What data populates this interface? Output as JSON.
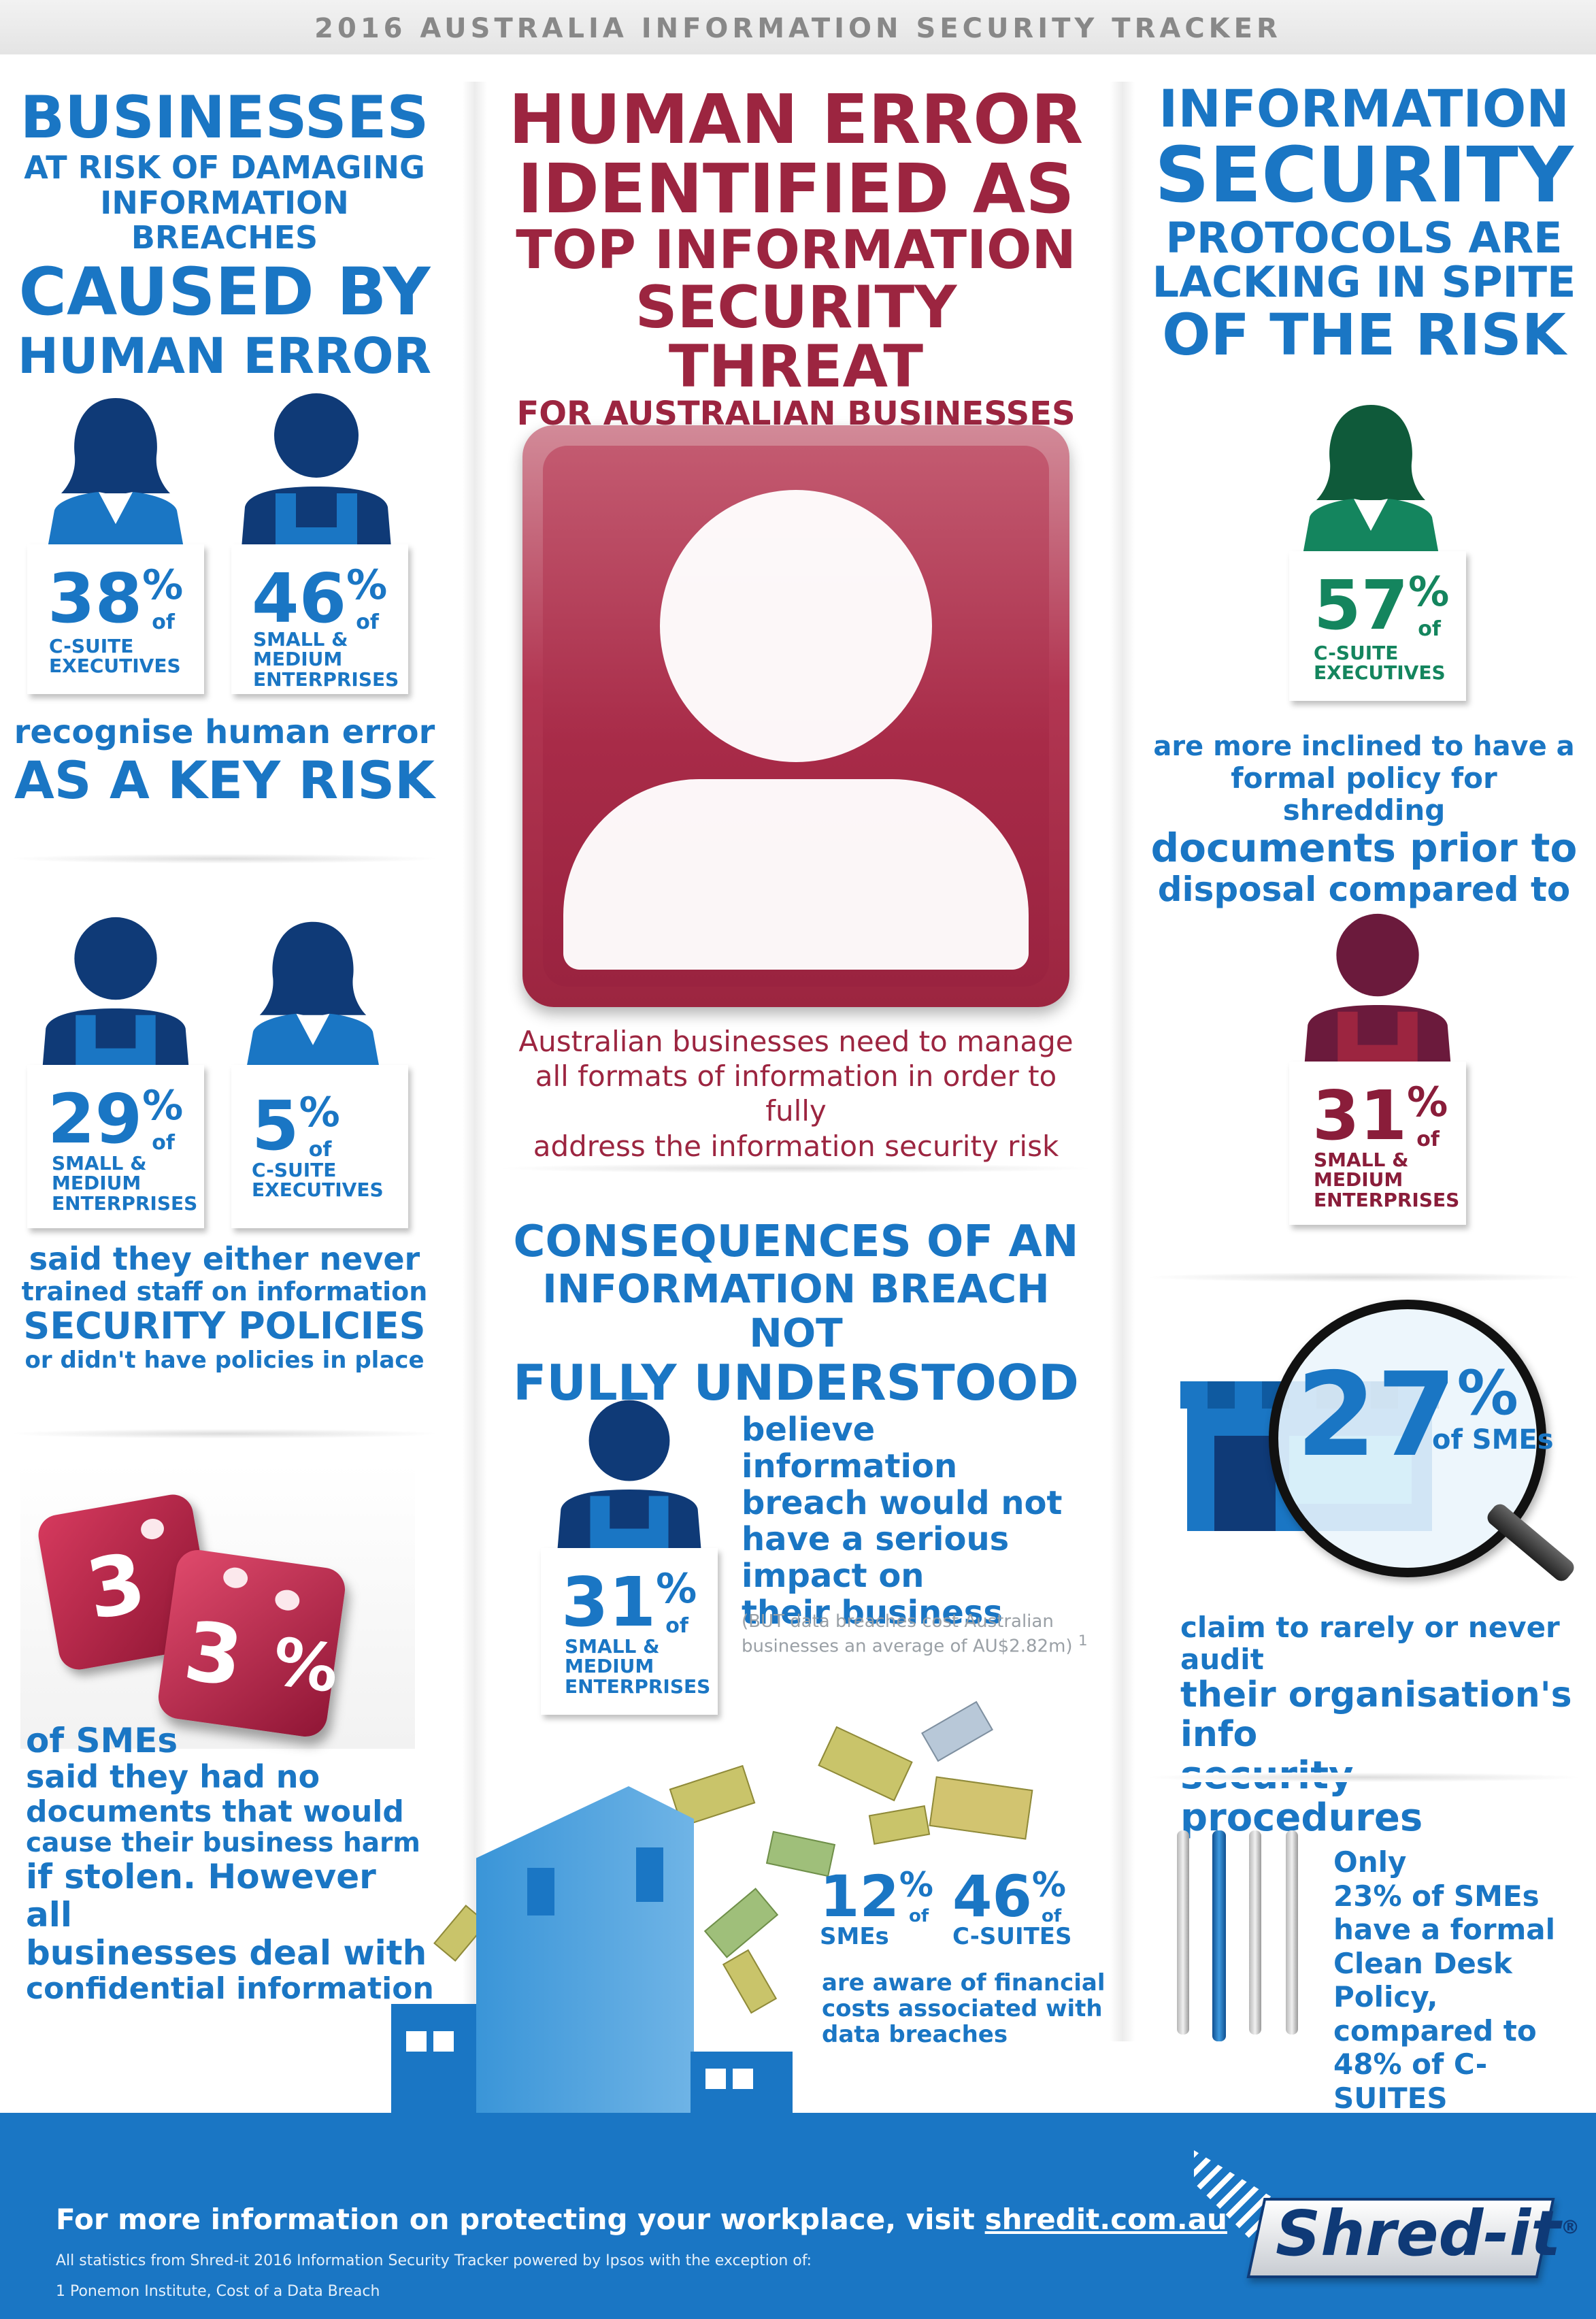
{
  "header": {
    "title": "2016 AUSTRALIA INFORMATION SECURITY TRACKER"
  },
  "left": {
    "headline": {
      "line1": "BUSINESSES",
      "line2": "AT RISK OF DAMAGING",
      "line3": "INFORMATION BREACHES",
      "line4": "CAUSED BY",
      "line5": "HUMAN ERROR"
    },
    "stat1": {
      "value": "38",
      "label1": "C-SUITE",
      "label2": "EXECUTIVES"
    },
    "stat2": {
      "value": "46",
      "label1": "SMALL &",
      "label2": "MEDIUM",
      "label3": "ENTERPRISES"
    },
    "risk_text": {
      "line1": "recognise human error",
      "line2": "AS A KEY RISK"
    },
    "stat3": {
      "value": "29",
      "label1": "SMALL &",
      "label2": "MEDIUM",
      "label3": "ENTERPRISES"
    },
    "stat4": {
      "value": "5",
      "label1": "C-SUITE",
      "label2": "EXECUTIVES"
    },
    "training_text": {
      "line1": "said they either never",
      "line2": "trained staff on information",
      "line3": "SECURITY POLICIES",
      "line4": "or didn't have policies in place"
    },
    "dice": {
      "d1": "3",
      "d2": "3",
      "pct": "%"
    },
    "docs_text": {
      "line1": "of SMEs",
      "line2": "said they had no",
      "line3": "documents that would",
      "line4": "cause their business harm",
      "line5": "if stolen. However all",
      "line6": "businesses deal with",
      "line7": "confidential information"
    }
  },
  "center": {
    "headline": {
      "line1": "HUMAN ERROR",
      "line2": "IDENTIFIED AS",
      "line3": "TOP INFORMATION",
      "line4": "SECURITY THREAT",
      "line5": "FOR AUSTRALIAN BUSINESSES"
    },
    "caption": {
      "line1": "Australian businesses need to manage",
      "line2": "all formats of information in order to fully",
      "line3": "address the information security risk"
    },
    "consequences": {
      "line1": "CONSEQUENCES OF AN",
      "line2": "INFORMATION BREACH NOT",
      "line3": "FULLY UNDERSTOOD"
    },
    "stat5": {
      "value": "31",
      "label1": "SMALL &",
      "label2": "MEDIUM",
      "label3": "ENTERPRISES"
    },
    "impact_text": {
      "line1": "believe information",
      "line2": "breach would not",
      "line3": "have a serious",
      "line4": "impact on",
      "line5": "their business",
      "note1": "(BUT data breaches cost Australian",
      "note2": "businesses an average of AU$2.82m)",
      "sup": "1"
    },
    "stat6": {
      "value": "12",
      "label": "SMEs"
    },
    "stat7": {
      "value": "46",
      "label": "C-SUITES"
    },
    "aware_text": {
      "line1": "are aware of financial",
      "line2": "costs associated with",
      "line3": "data breaches"
    }
  },
  "right": {
    "headline": {
      "line1": "INFORMATION",
      "line2": "SECURITY",
      "line3": "PROTOCOLS ARE",
      "line4": "LACKING IN SPITE",
      "line5": "OF THE RISK"
    },
    "stat8": {
      "value": "57",
      "label1": "C-SUITE",
      "label2": "EXECUTIVES"
    },
    "shred_text": {
      "line1": "are more inclined to have a",
      "line2": "formal policy for shredding",
      "line3": "documents prior to",
      "line4": "disposal compared to"
    },
    "stat9": {
      "value": "31",
      "label1": "SMALL &",
      "label2": "MEDIUM",
      "label3": "ENTERPRISES"
    },
    "audit_stat": {
      "value": "27",
      "pct": "%",
      "label": "of SMEs"
    },
    "audit_text": {
      "line1": "claim to rarely or never audit",
      "line2": "their organisation's info",
      "line3": "security procedures"
    },
    "desk_text": {
      "line1": "Only",
      "line2": "23% of SMEs",
      "line3": "have a formal",
      "line4": "Clean Desk Policy,",
      "line5": "compared to",
      "line6": "48% of C-SUITES"
    }
  },
  "shared": {
    "pct_sign": "%",
    "of": "of"
  },
  "footer": {
    "cta": "For more information on protecting your workplace, visit",
    "link": "shredit.com.au",
    "note1": "All statistics from Shred-it 2016 Information Security Tracker powered by Ipsos with the exception of:",
    "note2": "1 Ponemon Institute, Cost of a Data Breach",
    "logo": "Shred-it",
    "reg": "®"
  },
  "colors": {
    "blue": "#1a76c4",
    "navy": "#0f3a77",
    "crimson": "#9c2540",
    "green": "#14855e",
    "plum": "#6b1a3c"
  }
}
